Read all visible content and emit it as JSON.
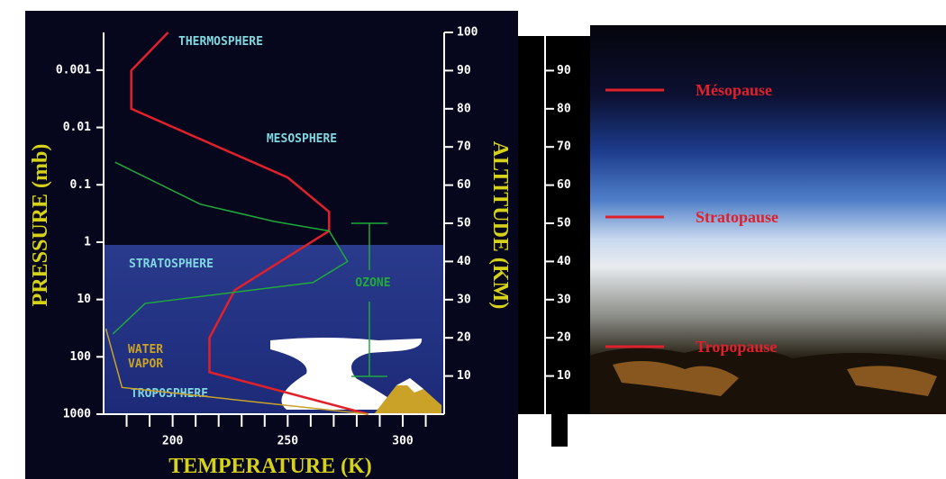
{
  "chart_data": {
    "type": "line",
    "xlabel": "TEMPERATURE (K)",
    "ylabel": "ALTITUDE (KM)",
    "xlim": [
      170,
      318
    ],
    "xticks": [
      200,
      250,
      300
    ],
    "xminorticks": [
      180,
      190,
      210,
      220,
      230,
      240,
      260,
      270,
      280,
      290,
      310
    ],
    "ylim": [
      0,
      100
    ],
    "yticks": [
      10,
      20,
      30,
      40,
      50,
      60,
      70,
      80,
      90,
      100
    ],
    "pressure_axis": {
      "label": "PRESSURE (mb)",
      "log": true,
      "lim": [
        1000,
        0.00022
      ],
      "ticks": [
        0.001,
        0.01,
        0.1,
        1,
        10,
        100,
        1000
      ]
    },
    "series": [
      {
        "color": "#e0202a",
        "x": [
          198,
          182,
          182,
          250,
          268,
          268,
          227,
          216,
          216,
          285
        ],
        "values": [
          100,
          90,
          80,
          62,
          53,
          48,
          32.5,
          20,
          11,
          0
        ]
      },
      {
        "name": "OZONE",
        "color": "#1faa3a",
        "x": [
          175,
          212,
          244,
          268,
          276,
          261,
          188,
          174
        ],
        "values": [
          66,
          55,
          50.5,
          48,
          40,
          34.5,
          29,
          21
        ]
      },
      {
        "name": "WATER VAPOR",
        "color": "#c9a227",
        "x": [
          171,
          178,
          285
        ],
        "values": [
          22.4,
          7,
          0
        ]
      }
    ],
    "layers": [
      "THERMOSPHERE",
      "MESOSPHERE",
      "STRATOSPHERE",
      "TROPOSPHERE"
    ],
    "pauses": [
      "Mésopause",
      "Stratopause",
      "Tropopause"
    ]
  }
}
